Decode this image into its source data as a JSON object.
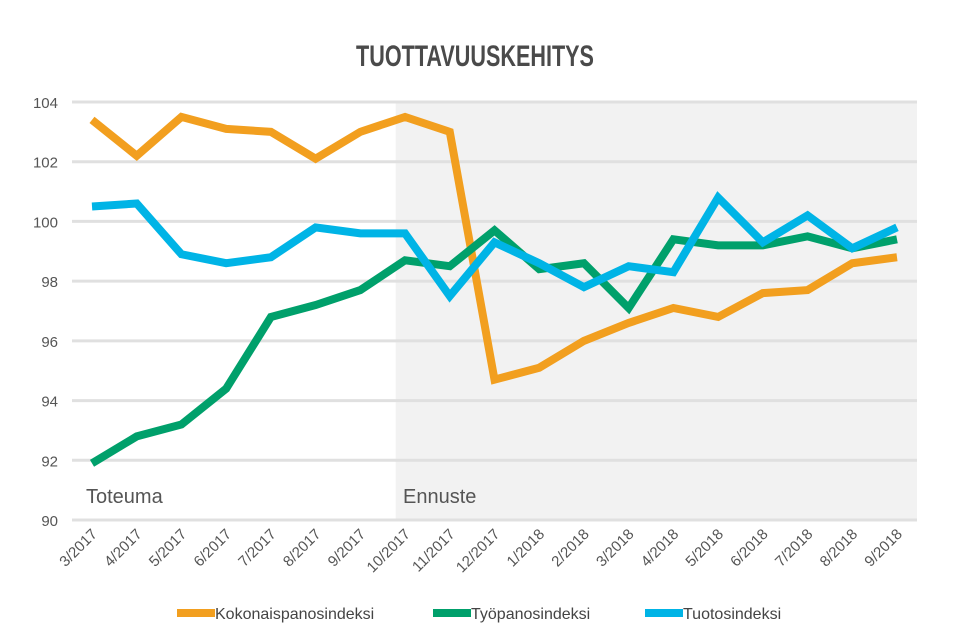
{
  "chart_data": {
    "type": "line",
    "title": "TUOTTAVUUSKEHITYS",
    "xlabel": "",
    "ylabel": "",
    "categories": [
      "3/2017",
      "4/2017",
      "5/2017",
      "6/2017",
      "7/2017",
      "8/2017",
      "9/2017",
      "10/2017",
      "11/2017",
      "12/2017",
      "1/2018",
      "2/2018",
      "3/2018",
      "4/2018",
      "5/2018",
      "6/2018",
      "7/2018",
      "8/2018",
      "9/2018"
    ],
    "ylim": [
      90,
      104
    ],
    "yticks": [
      90,
      92,
      94,
      96,
      98,
      100,
      102,
      104
    ],
    "grid": true,
    "legend": "bottom",
    "annotations": {
      "actual": "Toteuma",
      "forecast": "Ennuste"
    },
    "forecast_start": "10/2017",
    "series": [
      {
        "name": "Kokonaispanosindeksi",
        "color": "#f29f1f",
        "values": [
          103.4,
          102.2,
          103.5,
          103.1,
          103.0,
          102.1,
          103.0,
          103.5,
          103.0,
          94.7,
          95.1,
          96.0,
          96.6,
          97.1,
          96.8,
          97.6,
          97.7,
          98.6,
          98.8
        ]
      },
      {
        "name": "Työpanosindeksi",
        "color": "#00a06b",
        "values": [
          91.9,
          92.8,
          93.2,
          94.4,
          96.8,
          97.2,
          97.7,
          98.7,
          98.5,
          99.7,
          98.4,
          98.6,
          97.1,
          99.4,
          99.2,
          99.2,
          99.5,
          99.1,
          99.4
        ]
      },
      {
        "name": "Tuotosindeksi",
        "color": "#00b4e6",
        "values": [
          100.5,
          100.6,
          98.9,
          98.6,
          98.8,
          99.8,
          99.6,
          99.6,
          97.5,
          99.3,
          98.6,
          97.8,
          98.5,
          98.3,
          100.8,
          99.3,
          100.2,
          99.1,
          99.8
        ]
      }
    ]
  }
}
